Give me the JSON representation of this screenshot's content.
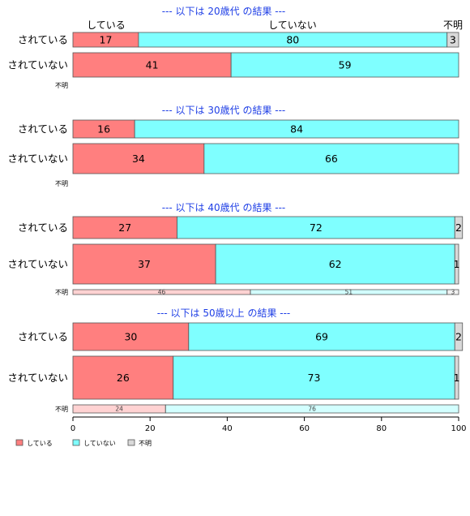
{
  "colors": {
    "did": "#ff7f7f",
    "didnt": "#7fffff",
    "unknown": "#d9d9d9",
    "title": "#1f3fe6",
    "stroke": "#555555"
  },
  "top_labels": {
    "did": "している",
    "didnt": "していない",
    "unknown": "不明"
  },
  "legend": [
    "している",
    "していない",
    "不明"
  ],
  "xaxis": {
    "ticks": [
      0,
      20,
      40,
      60,
      80,
      100
    ]
  },
  "chart_data": [
    {
      "type": "bar",
      "title": "--- 以下は 20歳代 の結果 ---",
      "categories": [
        "されている",
        "されていない",
        "不明"
      ],
      "series": [
        {
          "name": "している",
          "values": [
            17,
            41,
            null
          ]
        },
        {
          "name": "していない",
          "values": [
            80,
            59,
            null
          ]
        },
        {
          "name": "不明",
          "values": [
            3,
            0,
            null
          ]
        }
      ],
      "xlim": [
        0,
        100
      ]
    },
    {
      "type": "bar",
      "title": "--- 以下は 30歳代 の結果 ---",
      "categories": [
        "されている",
        "されていない",
        "不明"
      ],
      "series": [
        {
          "name": "している",
          "values": [
            16,
            34,
            null
          ]
        },
        {
          "name": "していない",
          "values": [
            84,
            66,
            null
          ]
        },
        {
          "name": "不明",
          "values": [
            0,
            0,
            null
          ]
        }
      ],
      "xlim": [
        0,
        100
      ]
    },
    {
      "type": "bar",
      "title": "--- 以下は 40歳代 の結果 ---",
      "categories": [
        "されている",
        "されていない",
        "不明"
      ],
      "series": [
        {
          "name": "している",
          "values": [
            27,
            37,
            46
          ]
        },
        {
          "name": "していない",
          "values": [
            72,
            62,
            51
          ]
        },
        {
          "name": "不明",
          "values": [
            2,
            1,
            3
          ]
        }
      ],
      "xlim": [
        0,
        100
      ]
    },
    {
      "type": "bar",
      "title": "--- 以下は 50歳以上 の結果 ---",
      "categories": [
        "されている",
        "されていない",
        "不明"
      ],
      "series": [
        {
          "name": "している",
          "values": [
            30,
            26,
            24
          ]
        },
        {
          "name": "していない",
          "values": [
            69,
            73,
            76
          ]
        },
        {
          "name": "不明",
          "values": [
            2,
            1,
            0
          ]
        }
      ],
      "xlim": [
        0,
        100
      ]
    }
  ]
}
